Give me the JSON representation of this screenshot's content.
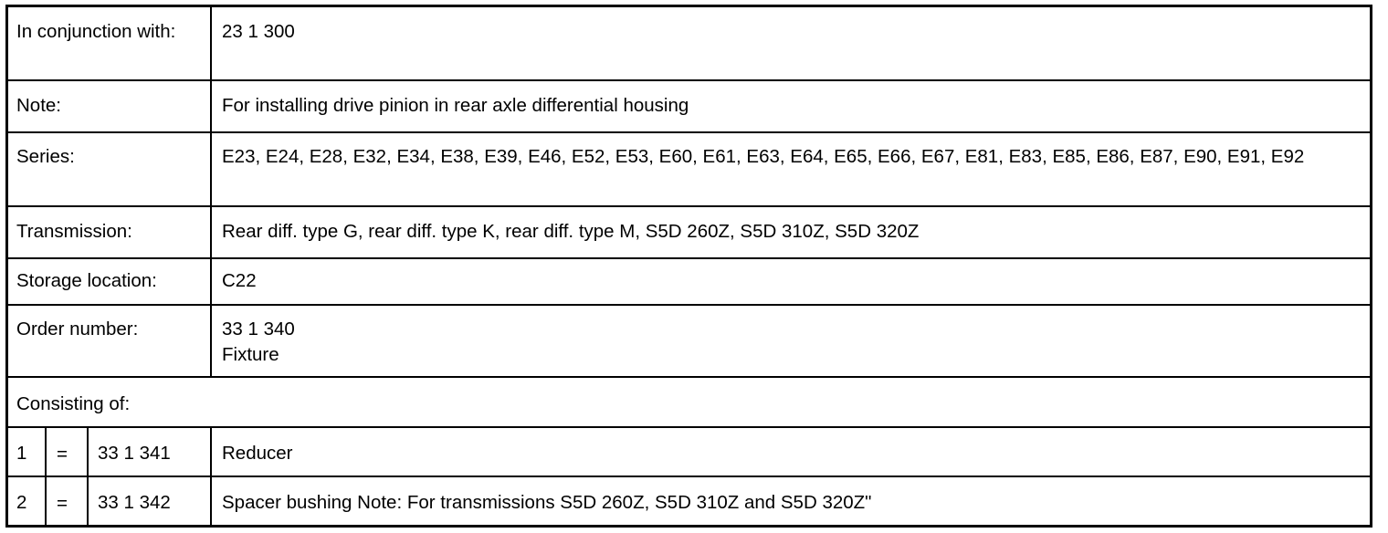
{
  "rows": [
    {
      "label": "In conjunction with:",
      "value": "23 1 300"
    },
    {
      "label": "Note:",
      "value": "For installing drive pinion in rear axle differential housing"
    },
    {
      "label": "Series:",
      "value": "E23, E24, E28, E32, E34, E38, E39, E46, E52, E53, E60, E61, E63, E64, E65, E66, E67, E81, E83, E85, E86, E87, E90, E91, E92"
    },
    {
      "label": "Transmission:",
      "value": "Rear diff. type G, rear diff. type K, rear diff. type M, S5D 260Z, S5D 310Z, S5D 320Z"
    },
    {
      "label": "Storage location:",
      "value": "C22"
    },
    {
      "label": "Order number:",
      "value": "33 1 340",
      "value2": "Fixture"
    }
  ],
  "consisting_label": "Consisting of:",
  "parts": [
    {
      "index": "1",
      "eq": "=",
      "number": "33 1 341",
      "description": "Reducer"
    },
    {
      "index": "2",
      "eq": "=",
      "number": "33 1 342",
      "description": "Spacer bushing Note: For transmissions S5D 260Z, S5D 310Z and S5D 320Z\""
    }
  ]
}
